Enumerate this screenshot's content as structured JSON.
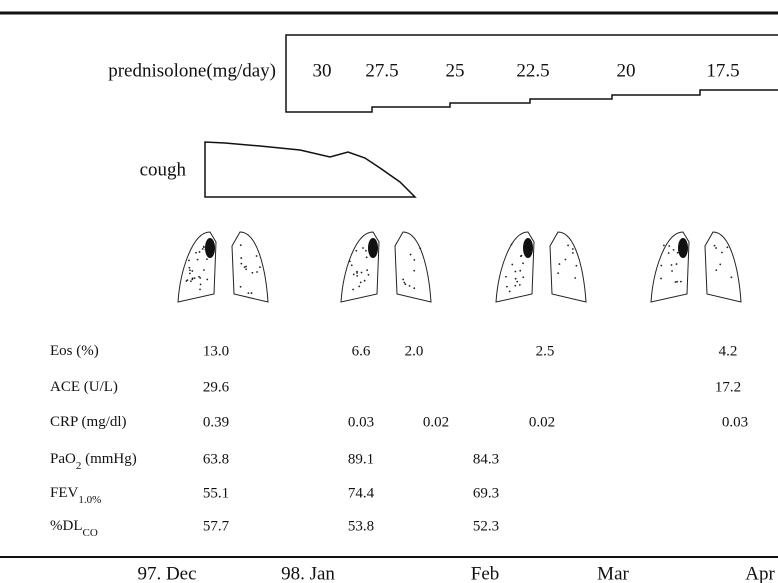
{
  "prednisolone": {
    "label": "prednisolone(mg/day)",
    "doses": [
      "30",
      "27.5",
      "25",
      "22.5",
      "20",
      "17.5"
    ]
  },
  "cough": {
    "label": "cough"
  },
  "table": {
    "rows": [
      {
        "label": {
          "main": "Eos  (%)"
        },
        "cells": [
          "13.0",
          "6.6",
          "2.0",
          "2.5",
          "4.2"
        ]
      },
      {
        "label": {
          "main": "ACE (U/L)"
        },
        "cells": [
          "29.6",
          "17.2"
        ]
      },
      {
        "label": {
          "main": "CRP (mg/dl)"
        },
        "cells": [
          "0.39",
          "0.03",
          "0.02",
          "0.02",
          "0.03"
        ]
      },
      {
        "label": {
          "main": "PaO",
          "sub": "2",
          "rest": " (mmHg)"
        },
        "cells": [
          "63.8",
          "89.1",
          "84.3"
        ]
      },
      {
        "label": {
          "main": "FEV",
          "sub": "1.0%"
        },
        "cells": [
          "55.1",
          "74.4",
          "69.3"
        ]
      },
      {
        "label": {
          "main": "%DL",
          "sub": "CO"
        },
        "cells": [
          "57.7",
          "53.8",
          "52.3"
        ]
      }
    ]
  },
  "timeline": [
    "97. Dec",
    "98. Jan",
    "Feb",
    "Mar",
    "Apr"
  ]
}
